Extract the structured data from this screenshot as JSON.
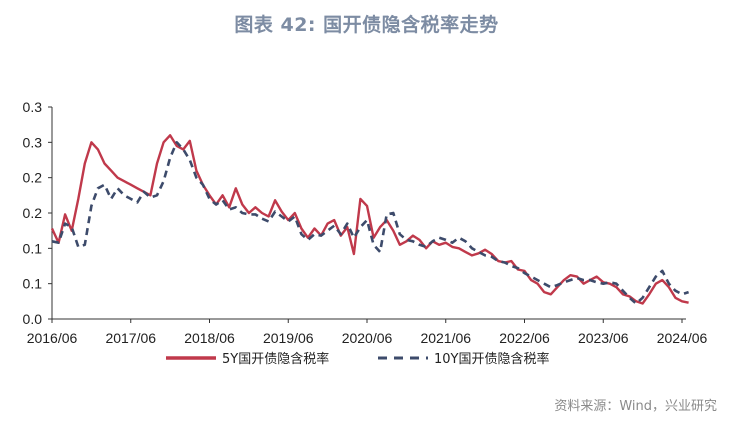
{
  "title": "图表 42: 国开债隐含税率走势",
  "source": "资料来源：Wind，兴业研究",
  "chart_data": {
    "type": "line",
    "title": "图表 42: 国开债隐含税率走势",
    "xlabel": "",
    "ylabel": "",
    "x_tick_labels": [
      "2016/06",
      "2017/06",
      "2018/06",
      "2019/06",
      "2020/06",
      "2021/06",
      "2022/06",
      "2023/06",
      "2024/06"
    ],
    "y_tick_labels": [
      "0.0",
      "0.1",
      "0.1",
      "0.2",
      "0.2",
      "0.3",
      "0.3"
    ],
    "ylim": [
      0,
      0.3
    ],
    "legend_position": "bottom",
    "grid": false,
    "x": [
      "2016/06",
      "2016/07",
      "2016/08",
      "2016/09",
      "2016/10",
      "2016/11",
      "2016/12",
      "2017/01",
      "2017/02",
      "2017/03",
      "2017/04",
      "2017/05",
      "2017/06",
      "2017/07",
      "2017/08",
      "2017/09",
      "2017/10",
      "2017/11",
      "2017/12",
      "2018/01",
      "2018/02",
      "2018/03",
      "2018/04",
      "2018/05",
      "2018/06",
      "2018/07",
      "2018/08",
      "2018/09",
      "2018/10",
      "2018/11",
      "2018/12",
      "2019/01",
      "2019/02",
      "2019/03",
      "2019/04",
      "2019/05",
      "2019/06",
      "2019/07",
      "2019/08",
      "2019/09",
      "2019/10",
      "2019/11",
      "2019/12",
      "2020/01",
      "2020/02",
      "2020/03",
      "2020/04",
      "2020/05",
      "2020/06",
      "2020/07",
      "2020/08",
      "2020/09",
      "2020/10",
      "2020/11",
      "2020/12",
      "2021/01",
      "2021/02",
      "2021/03",
      "2021/04",
      "2021/05",
      "2021/06",
      "2021/07",
      "2021/08",
      "2021/09",
      "2021/10",
      "2021/11",
      "2021/12",
      "2022/01",
      "2022/02",
      "2022/03",
      "2022/04",
      "2022/05",
      "2022/06",
      "2022/07",
      "2022/08",
      "2022/09",
      "2022/10",
      "2022/11",
      "2022/12",
      "2023/01",
      "2023/02",
      "2023/03",
      "2023/04",
      "2023/05",
      "2023/06",
      "2023/07",
      "2023/08",
      "2023/09",
      "2023/10",
      "2023/11",
      "2023/12",
      "2024/01",
      "2024/02",
      "2024/03",
      "2024/04",
      "2024/05",
      "2024/06",
      "2024/07"
    ],
    "series": [
      {
        "name": "5Y国开债隐含税率",
        "color": "#c0394b",
        "style": "solid",
        "values": [
          0.128,
          0.108,
          0.148,
          0.125,
          0.17,
          0.22,
          0.25,
          0.24,
          0.22,
          0.21,
          0.2,
          0.195,
          0.19,
          0.185,
          0.18,
          0.175,
          0.22,
          0.25,
          0.26,
          0.245,
          0.24,
          0.252,
          0.21,
          0.19,
          0.175,
          0.162,
          0.175,
          0.158,
          0.185,
          0.162,
          0.15,
          0.158,
          0.15,
          0.145,
          0.168,
          0.152,
          0.14,
          0.15,
          0.128,
          0.115,
          0.128,
          0.118,
          0.135,
          0.14,
          0.118,
          0.13,
          0.092,
          0.17,
          0.16,
          0.115,
          0.13,
          0.14,
          0.125,
          0.105,
          0.11,
          0.118,
          0.112,
          0.1,
          0.11,
          0.105,
          0.108,
          0.102,
          0.1,
          0.095,
          0.09,
          0.093,
          0.098,
          0.092,
          0.082,
          0.08,
          0.082,
          0.07,
          0.068,
          0.055,
          0.05,
          0.038,
          0.035,
          0.045,
          0.055,
          0.062,
          0.06,
          0.05,
          0.055,
          0.06,
          0.052,
          0.05,
          0.045,
          0.035,
          0.032,
          0.025,
          0.022,
          0.035,
          0.05,
          0.055,
          0.045,
          0.03,
          0.025,
          0.023
        ]
      },
      {
        "name": "10Y国开债隐含税率",
        "color": "#3d4b6b",
        "style": "dashed",
        "values": [
          0.11,
          0.108,
          0.135,
          0.13,
          0.102,
          0.105,
          0.16,
          0.185,
          0.19,
          0.17,
          0.185,
          0.175,
          0.17,
          0.165,
          0.18,
          0.172,
          0.175,
          0.195,
          0.228,
          0.25,
          0.24,
          0.225,
          0.2,
          0.19,
          0.17,
          0.162,
          0.168,
          0.155,
          0.158,
          0.15,
          0.148,
          0.148,
          0.142,
          0.138,
          0.152,
          0.145,
          0.138,
          0.145,
          0.12,
          0.112,
          0.12,
          0.118,
          0.125,
          0.132,
          0.12,
          0.135,
          0.115,
          0.13,
          0.14,
          0.105,
          0.095,
          0.148,
          0.15,
          0.12,
          0.112,
          0.11,
          0.105,
          0.102,
          0.11,
          0.115,
          0.112,
          0.108,
          0.115,
          0.11,
          0.1,
          0.095,
          0.09,
          0.088,
          0.082,
          0.08,
          0.075,
          0.072,
          0.065,
          0.06,
          0.055,
          0.05,
          0.045,
          0.048,
          0.052,
          0.055,
          0.058,
          0.055,
          0.055,
          0.052,
          0.05,
          0.052,
          0.05,
          0.04,
          0.03,
          0.022,
          0.03,
          0.045,
          0.06,
          0.068,
          0.05,
          0.04,
          0.035,
          0.038
        ]
      }
    ]
  }
}
